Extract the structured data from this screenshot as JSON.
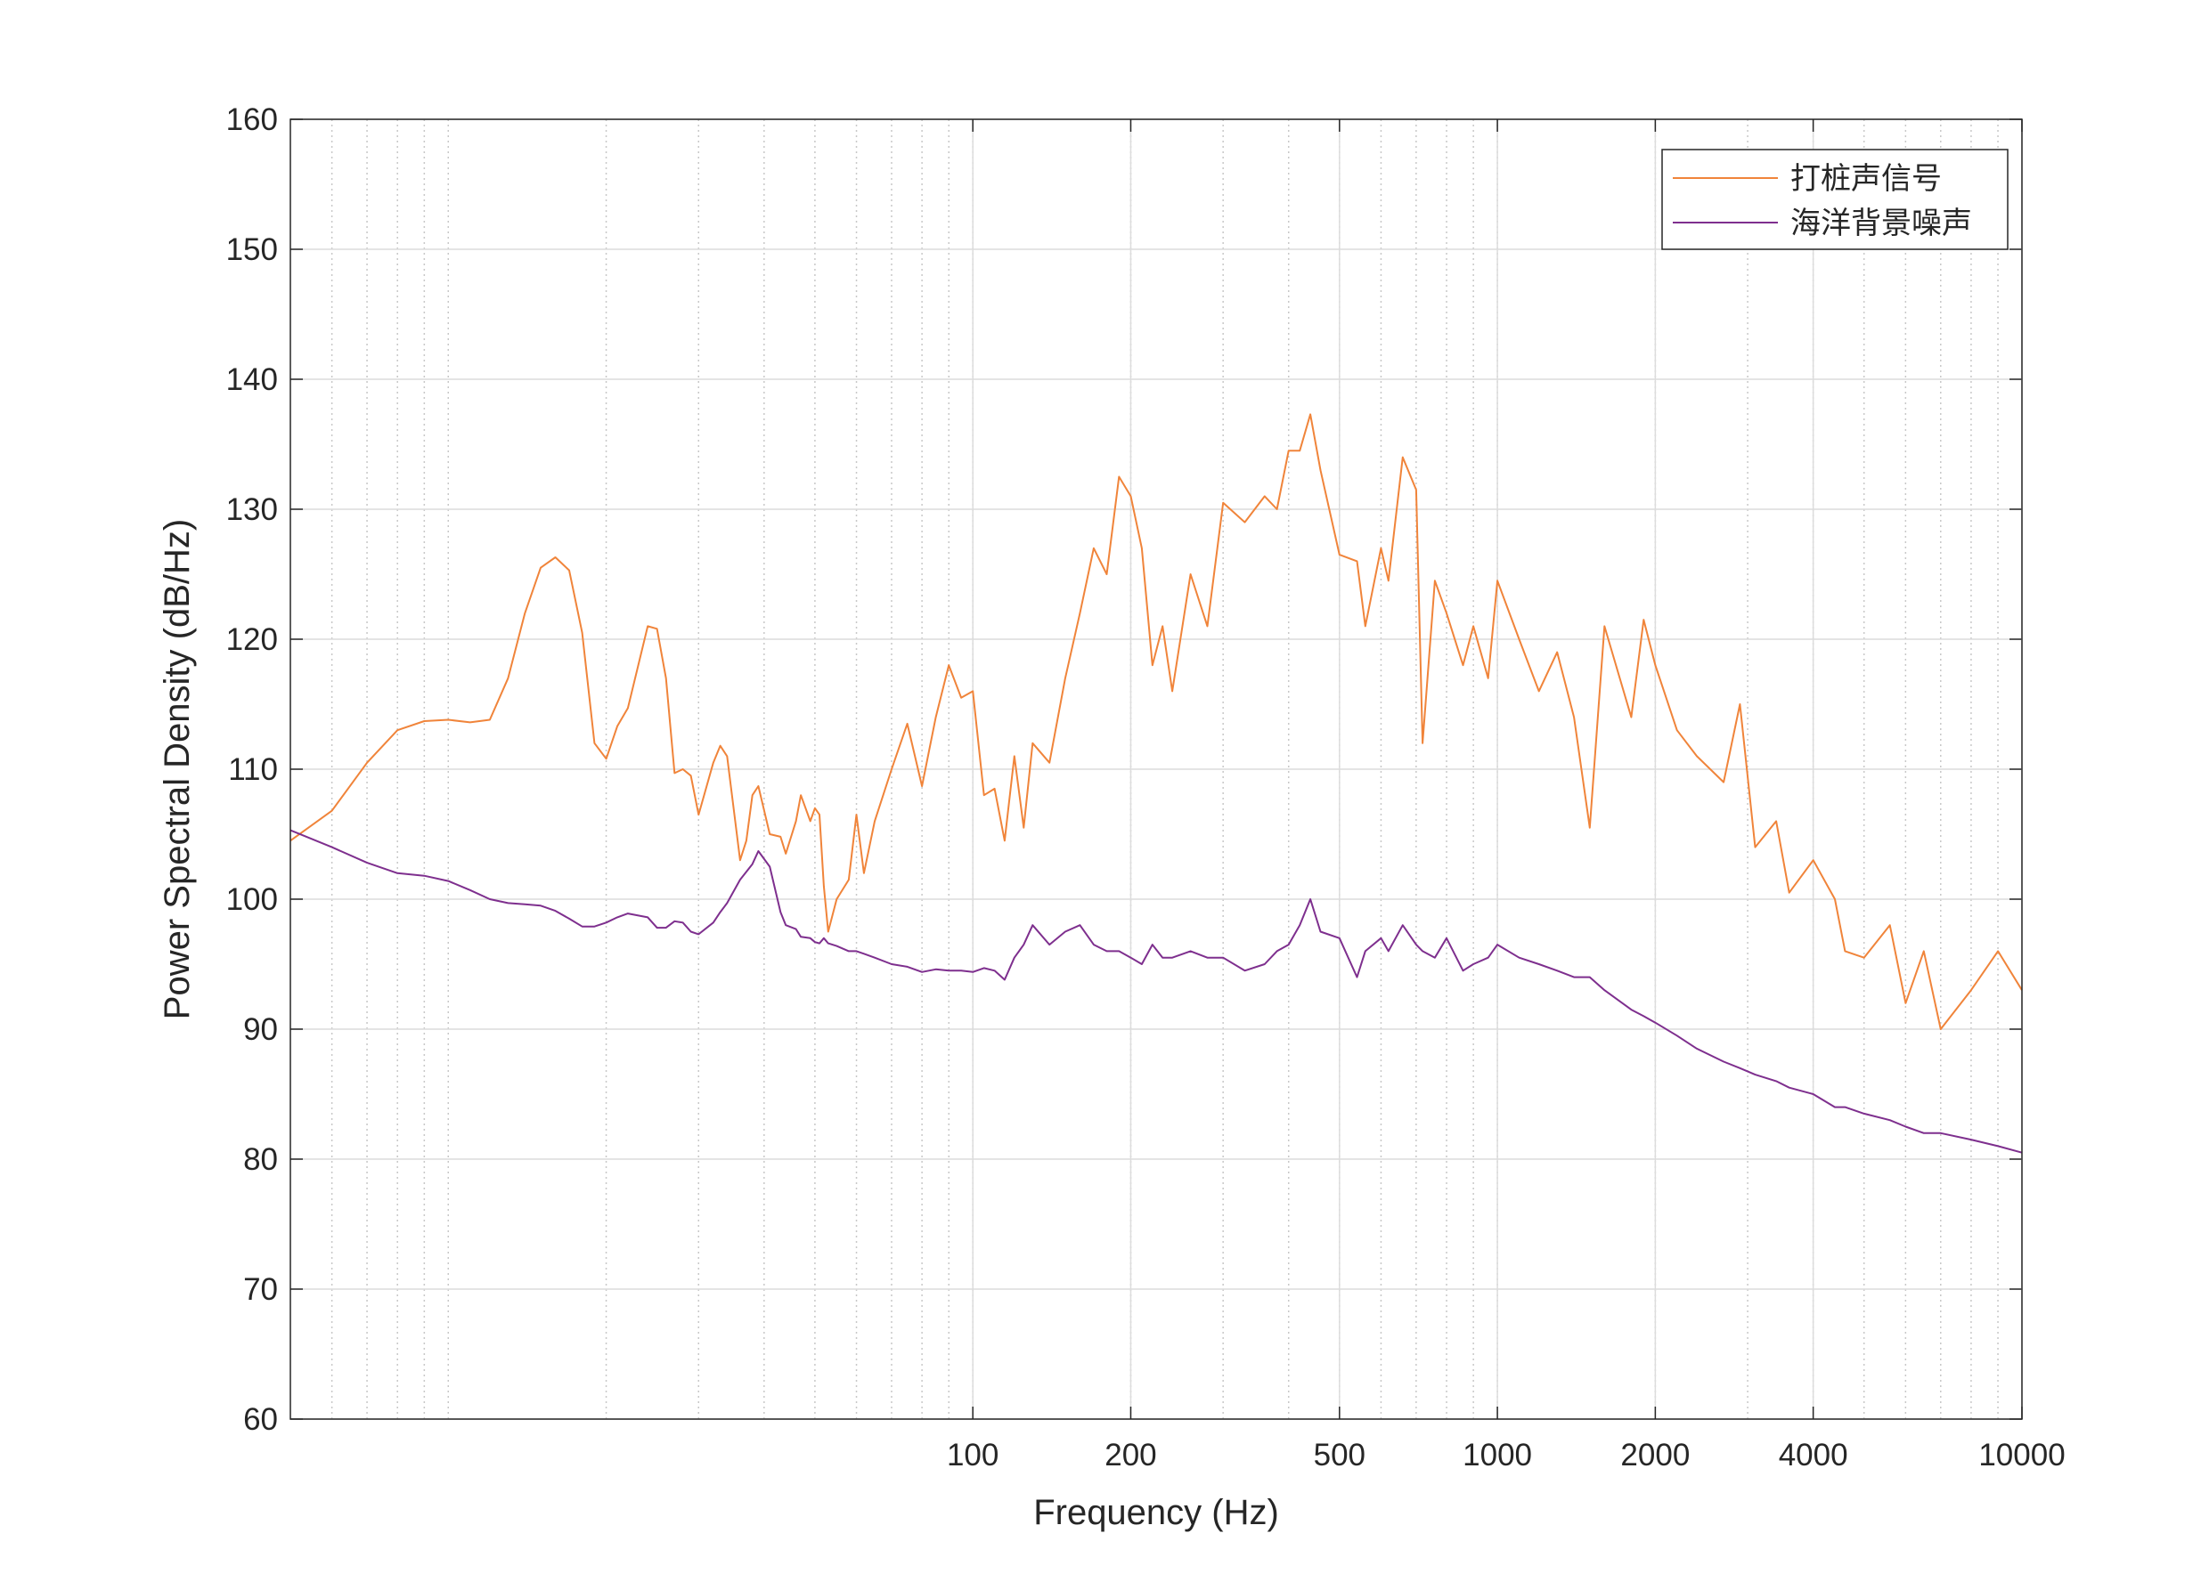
{
  "chart_data": {
    "type": "line",
    "x_label": "Frequency (Hz)",
    "y_label": "Power Spectral Density (dB/Hz)",
    "x_scale": "log",
    "xlim": [
      5,
      10000
    ],
    "xticks": [
      100,
      200,
      500,
      1000,
      2000,
      4000,
      10000
    ],
    "ylim": [
      60,
      160
    ],
    "yticks": [
      60,
      70,
      80,
      90,
      100,
      110,
      120,
      130,
      140,
      150,
      160
    ],
    "grid": true,
    "minor_grid": true,
    "legend": "upper right",
    "x": [
      5,
      6,
      7,
      8,
      9,
      10,
      11,
      12,
      13,
      14,
      15,
      16,
      17,
      18,
      19,
      20,
      21,
      22,
      24,
      25,
      26,
      27,
      28,
      29,
      30,
      32,
      33,
      34,
      36,
      37,
      38,
      39,
      41,
      43,
      44,
      46,
      47,
      49,
      50,
      51,
      52,
      53,
      55,
      58,
      60,
      62,
      65,
      70,
      75,
      80,
      85,
      90,
      95,
      100,
      105,
      110,
      115,
      120,
      125,
      130,
      140,
      150,
      160,
      170,
      180,
      190,
      200,
      210,
      220,
      230,
      240,
      260,
      280,
      300,
      330,
      360,
      380,
      400,
      420,
      440,
      460,
      500,
      540,
      560,
      600,
      620,
      660,
      700,
      720,
      760,
      800,
      860,
      900,
      960,
      1000,
      1100,
      1200,
      1300,
      1400,
      1500,
      1600,
      1800,
      1900,
      2000,
      2200,
      2400,
      2700,
      2900,
      3100,
      3400,
      3600,
      4000,
      4400,
      4600,
      5000,
      5600,
      6000,
      6500,
      7000,
      8000,
      9000,
      10000
    ],
    "series": [
      {
        "name": "打桩声信号",
        "color": "#f0843a",
        "values": [
          104.5,
          106.8,
          110.5,
          113,
          113.7,
          113.8,
          113.6,
          113.8,
          117,
          122,
          125.5,
          126.3,
          125.3,
          120.5,
          112,
          110.8,
          113.3,
          114.7,
          121,
          120.8,
          117,
          109.7,
          110,
          109.5,
          106.5,
          110.5,
          111.8,
          111,
          103,
          104.5,
          108,
          108.7,
          105,
          104.8,
          103.5,
          106,
          108,
          106,
          107,
          106.5,
          101,
          97.5,
          100,
          101.5,
          106.5,
          102,
          106,
          110,
          113.5,
          108.7,
          114,
          118,
          115.5,
          116,
          108,
          108.5,
          104.5,
          111,
          105.5,
          112,
          110.5,
          117,
          122,
          127,
          125,
          132.5,
          131,
          127,
          118,
          121,
          116,
          125,
          121,
          130.5,
          129,
          131,
          130,
          134.5,
          134.5,
          137.3,
          133,
          126.5,
          126,
          121,
          127,
          124.5,
          134,
          131.5,
          112,
          124.5,
          122,
          118,
          121,
          117,
          124.5,
          120,
          116,
          119,
          114,
          105.5,
          121,
          114,
          121.5,
          118,
          113,
          111,
          109,
          115,
          104,
          106,
          100.5,
          103,
          100,
          96,
          95.5,
          98,
          92,
          96,
          90,
          93,
          96,
          93
        ]
      },
      {
        "name": "海洋背景噪声",
        "color": "#7e2f8e",
        "values": [
          105.3,
          104,
          102.8,
          102,
          101.8,
          101.4,
          100.7,
          100,
          99.7,
          99.6,
          99.5,
          99.1,
          98.5,
          97.9,
          97.9,
          98.2,
          98.6,
          98.9,
          98.6,
          97.8,
          97.8,
          98.3,
          98.2,
          97.5,
          97.3,
          98.2,
          99,
          99.7,
          101.5,
          102.1,
          102.7,
          103.7,
          102.5,
          99,
          98,
          97.7,
          97.1,
          97,
          96.7,
          96.6,
          97,
          96.6,
          96.4,
          96,
          96,
          95.8,
          95.5,
          95,
          94.8,
          94.4,
          94.6,
          94.5,
          94.5,
          94.4,
          94.7,
          94.5,
          93.8,
          95.5,
          96.5,
          98,
          96.5,
          97.5,
          98,
          96.5,
          96,
          96,
          95.5,
          95,
          96.5,
          95.5,
          95.5,
          96,
          95.5,
          95.5,
          94.5,
          95,
          96,
          96.5,
          98,
          100,
          97.5,
          97,
          94,
          96,
          97,
          96,
          98,
          96.5,
          96,
          95.5,
          97,
          94.5,
          95,
          95.5,
          96.5,
          95.5,
          95,
          94.5,
          94,
          94,
          93,
          91.5,
          91,
          90.5,
          89.5,
          88.5,
          87.5,
          87,
          86.5,
          86,
          85.5,
          85,
          84,
          84,
          83.5,
          83,
          82.5,
          82,
          82,
          81.5,
          81,
          80.5
        ]
      }
    ]
  }
}
